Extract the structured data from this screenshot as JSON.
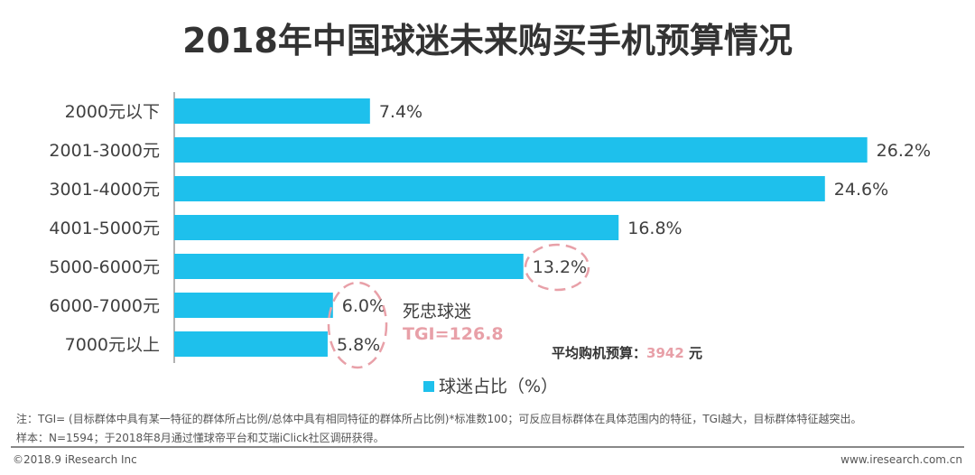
{
  "chart_data": {
    "type": "bar",
    "orientation": "horizontal",
    "title": "2018年中国球迷未来购买手机预算情况",
    "categories": [
      "2000元以下",
      "2001-3000元",
      "3001-4000元",
      "4001-5000元",
      "5000-6000元",
      "6000-7000元",
      "7000元以上"
    ],
    "series": [
      {
        "name": "球迷占比（%）",
        "values": [
          7.4,
          26.2,
          24.6,
          16.8,
          13.2,
          6.0,
          5.8
        ]
      }
    ],
    "data_labels": [
      "7.4%",
      "26.2%",
      "24.6%",
      "16.8%",
      "13.2%",
      "6.0%",
      "5.8%"
    ],
    "xlim": [
      0,
      27
    ],
    "grid": false,
    "legend": "bottom",
    "bar_color": "#1EC0EC",
    "highlight_color": "#E8A0A8",
    "annotations": {
      "group_label": "死忠球迷",
      "tgi": "TGI=126.8",
      "avg_label": "平均购机预算：",
      "avg_value": "3942",
      "avg_unit": " 元"
    }
  },
  "notes": {
    "note1": "注：TGI= (目标群体中具有某一特征的群体所占比例/总体中具有相同特征的群体所占比例)*标准数100；可反应目标群体在具体范围内的特征，TGI越大，目标群体特征越突出。",
    "note2": "样本：N=1594；于2018年8月通过懂球帝平台和艾瑞iClick社区调研获得。"
  },
  "footer": {
    "copyright": "©2018.9 iResearch Inc",
    "url": "www.iresearch.com.cn"
  }
}
